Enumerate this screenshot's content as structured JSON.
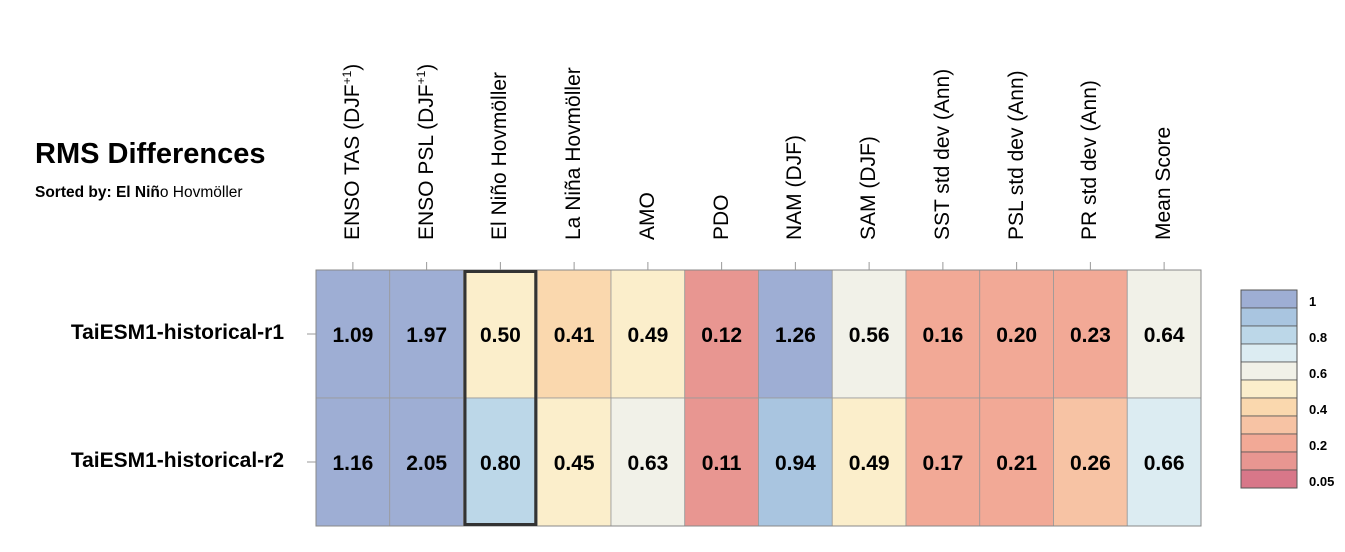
{
  "chart_data": {
    "type": "heatmap",
    "title": "RMS Differences",
    "subtitle_prefix": "Sorted by: El Niñ",
    "subtitle_suffix": "o Hovmöller",
    "columns": [
      {
        "text": "ENSO TAS (DJF",
        "sup": "+1",
        "tail": ")"
      },
      {
        "text": "ENSO PSL (DJF",
        "sup": "+1",
        "tail": ")"
      },
      {
        "text": "El Niño Hovmöller"
      },
      {
        "text": "La Niña Hovmöller"
      },
      {
        "text": "AMO"
      },
      {
        "text": "PDO"
      },
      {
        "text": "NAM (DJF)"
      },
      {
        "text": "SAM (DJF)"
      },
      {
        "text": "SST std dev (Ann)"
      },
      {
        "text": "PSL std dev (Ann)"
      },
      {
        "text": "PR std dev (Ann)"
      },
      {
        "text": "Mean Score"
      }
    ],
    "rows": [
      "TaiESM1-historical-r1",
      "TaiESM1-historical-r2"
    ],
    "values": [
      [
        "1.09",
        "1.97",
        "0.50",
        "0.41",
        "0.49",
        "0.12",
        "1.26",
        "0.56",
        "0.16",
        "0.20",
        "0.23",
        "0.64"
      ],
      [
        "1.16",
        "2.05",
        "0.80",
        "0.45",
        "0.63",
        "0.11",
        "0.94",
        "0.49",
        "0.17",
        "0.21",
        "0.26",
        "0.66"
      ]
    ],
    "sorted_column_index": 2,
    "colorbar": {
      "levels": [
        1.0,
        0.9,
        0.8,
        0.7,
        0.6,
        0.5,
        0.4,
        0.3,
        0.2,
        0.1,
        0.05
      ],
      "colors": [
        "#9eaed4",
        "#a9c5e0",
        "#bcd7e8",
        "#dcecf2",
        "#f1f1e8",
        "#fbeecb",
        "#fad8ae",
        "#f7c3a4",
        "#f2a996",
        "#e89691",
        "#d87789"
      ],
      "labels": [
        {
          "level": 1.0,
          "text": "1"
        },
        {
          "level": 0.8,
          "text": "0.8"
        },
        {
          "level": 0.6,
          "text": "0.6"
        },
        {
          "level": 0.4,
          "text": "0.4"
        },
        {
          "level": 0.2,
          "text": "0.2"
        },
        {
          "level": 0.05,
          "text": "0.05"
        }
      ]
    }
  }
}
